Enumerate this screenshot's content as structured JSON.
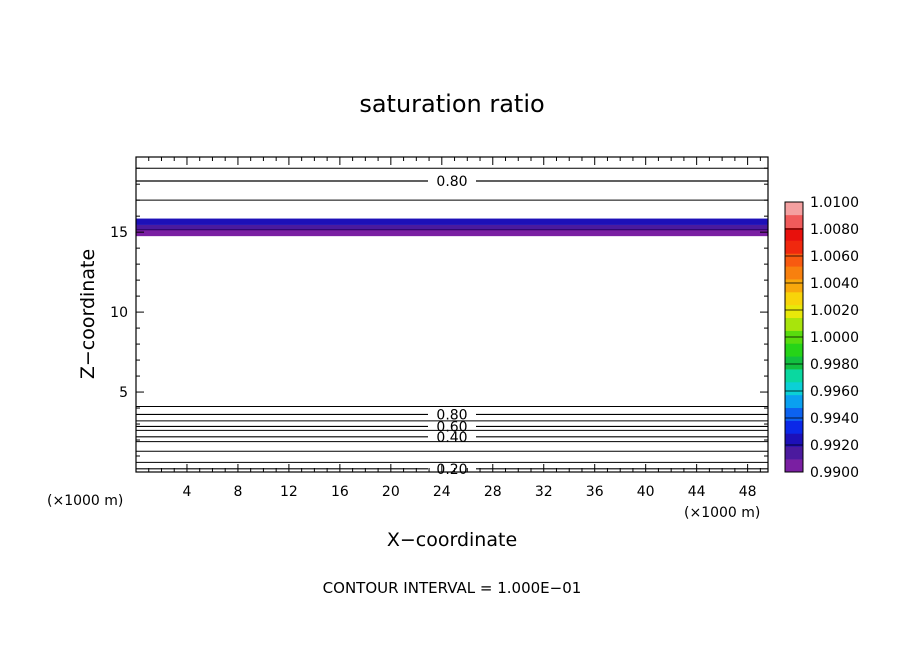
{
  "chart_data": {
    "type": "contour",
    "title": "saturation ratio",
    "xlabel": "X−coordinate",
    "ylabel": "Z−coordinate",
    "x_unit": "(×1000 m)",
    "y_unit": "(×1000 m)",
    "xlim": [
      0,
      49.6
    ],
    "ylim": [
      0,
      19.7
    ],
    "x_ticks": [
      4,
      8,
      12,
      16,
      20,
      24,
      28,
      32,
      36,
      40,
      44,
      48
    ],
    "y_ticks": [
      5,
      10,
      15
    ],
    "footer": "CONTOUR INTERVAL = 1.000E−01",
    "contour_lines": [
      {
        "z": 0.6,
        "label": ""
      },
      {
        "z": 1.3,
        "label": ""
      },
      {
        "z": 0.2,
        "label": "0.20"
      },
      {
        "z": 1.9,
        "label": ""
      },
      {
        "z": 2.2,
        "label": "0.40"
      },
      {
        "z": 2.6,
        "label": ""
      },
      {
        "z": 2.85,
        "label": "0.60"
      },
      {
        "z": 3.2,
        "label": ""
      },
      {
        "z": 3.6,
        "label": "0.80"
      },
      {
        "z": 4.1,
        "label": ""
      },
      {
        "z": 17.0,
        "label": ""
      },
      {
        "z": 18.2,
        "label": "0.80"
      },
      {
        "z": 19.0,
        "label": ""
      }
    ],
    "filled_band": [
      {
        "z0": 14.75,
        "z1": 15.15,
        "value": 0.9905
      },
      {
        "z0": 15.15,
        "z1": 15.45,
        "value": 0.9915
      },
      {
        "z0": 15.45,
        "z1": 15.85,
        "value": 0.9925
      }
    ],
    "colorbar": {
      "levels": [
        "1.0100",
        "1.0080",
        "1.0060",
        "1.0040",
        "1.0020",
        "1.0000",
        "0.9980",
        "0.9960",
        "0.9940",
        "0.9920",
        "0.9900"
      ],
      "colors": [
        "#7a1fa2",
        "#4b1a9e",
        "#1d10b8",
        "#0b28e8",
        "#0c62f0",
        "#0aa0f0",
        "#0bd0d6",
        "#0ad8a0",
        "#12c040",
        "#26d418",
        "#58dc0e",
        "#a8e40c",
        "#e8e80a",
        "#f8d40a",
        "#f8a80c",
        "#f8800e",
        "#f85a10",
        "#f0280e",
        "#e8100c",
        "#f05a5a",
        "#f4a0a0"
      ]
    }
  }
}
